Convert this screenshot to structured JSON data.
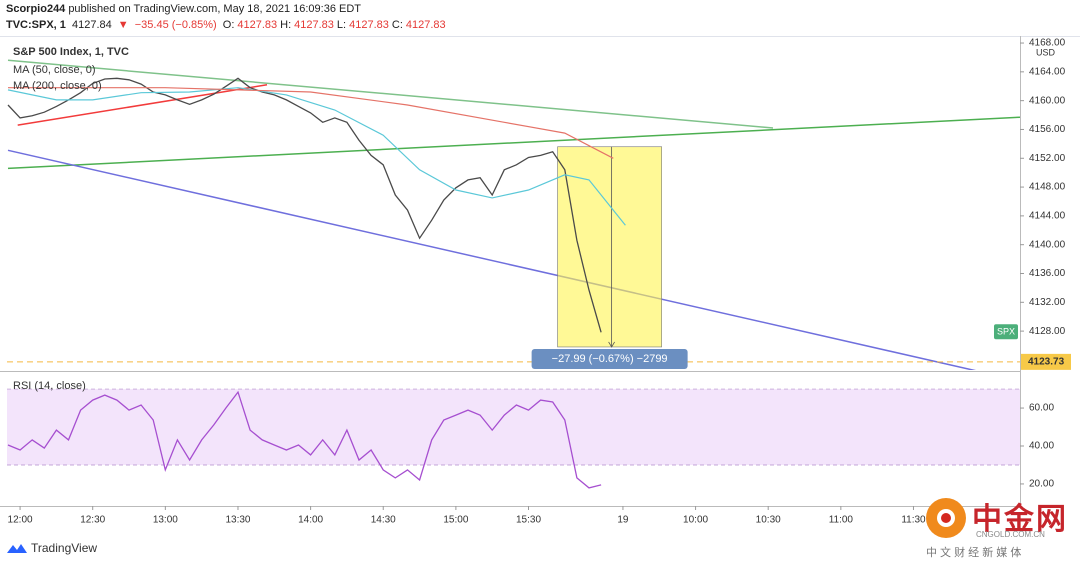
{
  "header": {
    "author": "Scorpio244",
    "published": "published on TradingView.com, May 18, 2021 16:09:36 EDT",
    "symbol": "TVC:SPX, 1",
    "last": "4127.84",
    "arrow": "▼",
    "change": "−35.45 (−0.85%)",
    "ohlc": [
      {
        "key": "O:",
        "value": "4127.83"
      },
      {
        "key": "H:",
        "value": "4127.83"
      },
      {
        "key": "L:",
        "value": "4127.83"
      },
      {
        "key": "C:",
        "value": "4127.83"
      }
    ]
  },
  "footer": {
    "brand": "TradingView"
  },
  "watermark": {
    "name": "中金网",
    "site": "CNGOLD.COM.CN",
    "slogan": "中 文 财 经 新 媒 体"
  },
  "chart_data": [
    {
      "type": "line",
      "title": "S&P 500 Index, 1, TVC",
      "currency": "USD",
      "series_tag": "SPX",
      "xlim": [
        -5.4,
        413
      ],
      "ylim": [
        4122.6,
        4168.7
      ],
      "yticks": [
        {
          "value": 4128,
          "label": "4128.00"
        },
        {
          "value": 4132,
          "label": "4132.00"
        },
        {
          "value": 4136,
          "label": "4136.00"
        },
        {
          "value": 4140,
          "label": "4140.00"
        },
        {
          "value": 4144,
          "label": "4144.00"
        },
        {
          "value": 4148,
          "label": "4148.00"
        },
        {
          "value": 4152,
          "label": "4152.00"
        },
        {
          "value": 4156,
          "label": "4156.00"
        },
        {
          "value": 4160,
          "label": "4160.00"
        },
        {
          "value": 4164,
          "label": "4164.00"
        },
        {
          "value": 4168,
          "label": "4168.00"
        }
      ],
      "x": [
        -5,
        0,
        5,
        10,
        15,
        20,
        25,
        30,
        35,
        40,
        45,
        50,
        55,
        60,
        65,
        70,
        75,
        80,
        85,
        90,
        95,
        100,
        105,
        110,
        115,
        120,
        125,
        130,
        135,
        140,
        145,
        150,
        155,
        160,
        165,
        170,
        175,
        180,
        185,
        190,
        195,
        200,
        205,
        210,
        215,
        220,
        225,
        230,
        235,
        240
      ],
      "price_line": 4123.73,
      "series": [
        {
          "color": "#4a4a4a",
          "values": [
            4159.4,
            4157.6,
            4157.9,
            4158.4,
            4159.2,
            4160.1,
            4161.1,
            4162.4,
            4163,
            4163.1,
            4162.9,
            4162.3,
            4161.2,
            4160.8,
            4160.1,
            4159.5,
            4160.1,
            4160.9,
            4162,
            4163.1,
            4161.8,
            4161.2,
            4160.8,
            4160.1,
            4159.2,
            4158.3,
            4157,
            4157.6,
            4157,
            4154.5,
            4152.4,
            4151.1,
            4146.9,
            4144.8,
            4140.9,
            4143.4,
            4146.2,
            4147.9,
            4149,
            4149.3,
            4146.9,
            4150.4,
            4151.1,
            4152.1,
            4152.4,
            4152.9,
            4150.4,
            4140.6,
            4133.7,
            4127.84
          ]
        },
        {
          "name": "MA (50, close, 0)",
          "color": "#5bc8d8",
          "x": [
            -5,
            15,
            30,
            50,
            70,
            90,
            110,
            130,
            150,
            165,
            180,
            195,
            210,
            225,
            235,
            250
          ],
          "values": [
            4161.5,
            4160.1,
            4160.1,
            4161.1,
            4161.2,
            4161.8,
            4160.8,
            4158.7,
            4155.2,
            4150.4,
            4147.6,
            4146.5,
            4147.6,
            4149.7,
            4149,
            4142.7
          ]
        },
        {
          "name": "MA (200, close, 0)",
          "color": "#e57368",
          "x": [
            -5,
            60,
            120,
            160,
            200,
            225,
            245
          ],
          "values": [
            4161.8,
            4161.8,
            4161.2,
            4159.4,
            4157,
            4155.5,
            4152
          ]
        }
      ],
      "drawings": [
        {
          "color": "#7fc28a",
          "x": [
            -5,
            311
          ],
          "values": [
            4165.6,
            4156.2
          ]
        },
        {
          "color": "#4caf50",
          "x": [
            -5,
            413
          ],
          "values": [
            4150.6,
            4157.7
          ]
        },
        {
          "color": "#6f6fdd",
          "x": [
            -5,
            396
          ],
          "values": [
            4153.1,
            4122.4
          ]
        },
        {
          "color": "#f23b3b",
          "x": [
            -1,
            102
          ],
          "values": [
            4156.6,
            4162.2
          ]
        }
      ],
      "measure": {
        "x": [
          222,
          265
        ],
        "top": 4153.6,
        "bottom": 4125.8,
        "label": "−27.99 (−0.67%) −2799"
      }
    },
    {
      "type": "line",
      "title": "RSI (14, close)",
      "xlim": [
        -5.4,
        413
      ],
      "ylim": [
        8.9,
        79
      ],
      "band": [
        30,
        70
      ],
      "yticks": [
        {
          "value": 20,
          "label": "20.00"
        },
        {
          "value": 40,
          "label": "40.00"
        },
        {
          "value": 60,
          "label": "60.00"
        }
      ],
      "xticks": [
        {
          "value": 0,
          "label": "12:00"
        },
        {
          "value": 30,
          "label": "12:30"
        },
        {
          "value": 60,
          "label": "13:00"
        },
        {
          "value": 90,
          "label": "13:30"
        },
        {
          "value": 120,
          "label": "14:00"
        },
        {
          "value": 150,
          "label": "14:30"
        },
        {
          "value": 180,
          "label": "15:00"
        },
        {
          "value": 210,
          "label": "15:30"
        },
        {
          "value": 249,
          "label": "19"
        },
        {
          "value": 279,
          "label": "10:00"
        },
        {
          "value": 309,
          "label": "10:30"
        },
        {
          "value": 339,
          "label": "11:00"
        },
        {
          "value": 369,
          "label": "11:30"
        }
      ],
      "x": [
        -5,
        0,
        5,
        10,
        15,
        20,
        25,
        30,
        35,
        40,
        45,
        50,
        55,
        60,
        65,
        70,
        75,
        80,
        85,
        90,
        95,
        100,
        105,
        110,
        115,
        120,
        125,
        130,
        135,
        140,
        145,
        150,
        155,
        160,
        165,
        170,
        175,
        180,
        185,
        190,
        195,
        200,
        205,
        210,
        215,
        220,
        225,
        230,
        235,
        240
      ],
      "series": [
        {
          "color": "#a64fd0",
          "values": [
            40.5,
            37.9,
            43.2,
            38.9,
            48.4,
            43.2,
            58.9,
            64.2,
            66.8,
            64.2,
            58.9,
            61.6,
            53.7,
            27.4,
            43.2,
            32.6,
            43.2,
            51.1,
            60,
            68.4,
            48.4,
            43.2,
            40.5,
            37.9,
            40.5,
            35.3,
            43.2,
            35.3,
            48.4,
            32.6,
            37.9,
            27.4,
            23.2,
            27.4,
            22.1,
            43.2,
            53.7,
            56.3,
            58.9,
            56.3,
            48.4,
            56.3,
            61.6,
            58.9,
            64.2,
            63.2,
            53.7,
            23.2,
            17.9,
            19.5
          ]
        }
      ]
    }
  ]
}
